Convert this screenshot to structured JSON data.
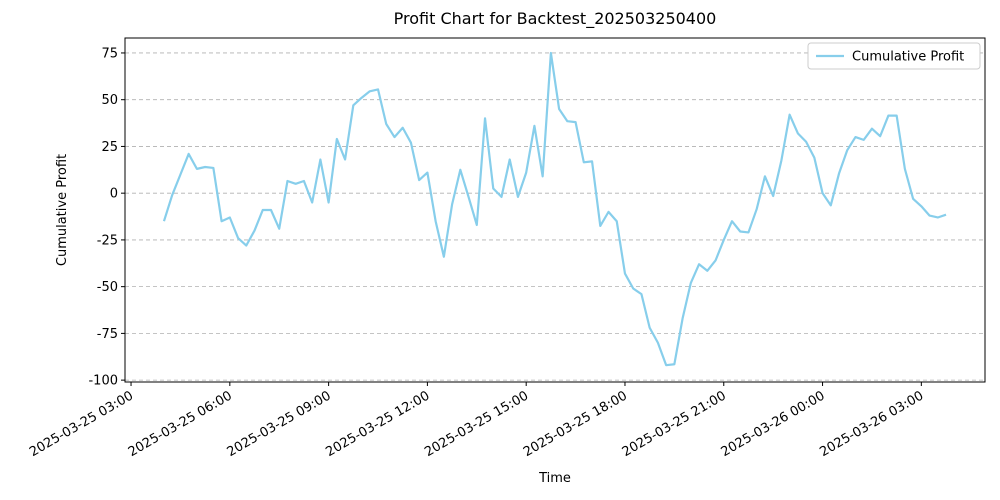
{
  "chart_data": {
    "type": "line",
    "title": "Profit Chart for Backtest_202503250400",
    "x_label": "Time",
    "y_label": "Cumulative Profit",
    "x": [
      "2025-03-25 04:00",
      "2025-03-25 04:15",
      "2025-03-25 04:30",
      "2025-03-25 04:45",
      "2025-03-25 05:00",
      "2025-03-25 05:15",
      "2025-03-25 05:30",
      "2025-03-25 05:45",
      "2025-03-25 06:00",
      "2025-03-25 06:15",
      "2025-03-25 06:30",
      "2025-03-25 06:45",
      "2025-03-25 07:00",
      "2025-03-25 07:15",
      "2025-03-25 07:30",
      "2025-03-25 07:45",
      "2025-03-25 08:00",
      "2025-03-25 08:15",
      "2025-03-25 08:30",
      "2025-03-25 08:45",
      "2025-03-25 09:00",
      "2025-03-25 09:15",
      "2025-03-25 09:30",
      "2025-03-25 09:45",
      "2025-03-25 10:00",
      "2025-03-25 10:15",
      "2025-03-25 10:30",
      "2025-03-25 10:45",
      "2025-03-25 11:00",
      "2025-03-25 11:15",
      "2025-03-25 11:30",
      "2025-03-25 11:45",
      "2025-03-25 12:00",
      "2025-03-25 12:15",
      "2025-03-25 12:30",
      "2025-03-25 12:45",
      "2025-03-25 13:00",
      "2025-03-25 13:15",
      "2025-03-25 13:30",
      "2025-03-25 13:45",
      "2025-03-25 14:00",
      "2025-03-25 14:15",
      "2025-03-25 14:30",
      "2025-03-25 14:45",
      "2025-03-25 15:00",
      "2025-03-25 15:15",
      "2025-03-25 15:30",
      "2025-03-25 15:45",
      "2025-03-25 16:00",
      "2025-03-25 16:15",
      "2025-03-25 16:30",
      "2025-03-25 16:45",
      "2025-03-25 17:00",
      "2025-03-25 17:15",
      "2025-03-25 17:30",
      "2025-03-25 17:45",
      "2025-03-25 18:00",
      "2025-03-25 18:15",
      "2025-03-25 18:30",
      "2025-03-25 18:45",
      "2025-03-25 19:00",
      "2025-03-25 19:15",
      "2025-03-25 19:30",
      "2025-03-25 19:45",
      "2025-03-25 20:00",
      "2025-03-25 20:15",
      "2025-03-25 20:30",
      "2025-03-25 20:45",
      "2025-03-25 21:00",
      "2025-03-25 21:15",
      "2025-03-25 21:30",
      "2025-03-25 21:45",
      "2025-03-25 22:00",
      "2025-03-25 22:15",
      "2025-03-25 22:30",
      "2025-03-25 22:45",
      "2025-03-25 23:00",
      "2025-03-25 23:15",
      "2025-03-25 23:30",
      "2025-03-25 23:45",
      "2025-03-26 00:00",
      "2025-03-26 00:15",
      "2025-03-26 00:30",
      "2025-03-26 00:45",
      "2025-03-26 01:00",
      "2025-03-26 01:15",
      "2025-03-26 01:30",
      "2025-03-26 01:45",
      "2025-03-26 02:00",
      "2025-03-26 02:15",
      "2025-03-26 02:30",
      "2025-03-26 02:45",
      "2025-03-26 03:00",
      "2025-03-26 03:15",
      "2025-03-26 03:30",
      "2025-03-26 03:45"
    ],
    "series": [
      {
        "name": "Cumulative Profit",
        "color": "#87ceeb",
        "values": [
          -15,
          -1,
          10,
          21,
          13,
          14,
          13.5,
          -15,
          -13,
          -24,
          -28,
          -20,
          -9,
          -9,
          -19,
          6.5,
          5,
          6.5,
          -5,
          18,
          -5,
          29,
          18,
          47,
          51,
          54.5,
          55.5,
          37,
          30,
          35,
          27,
          7,
          11,
          -15,
          -34,
          -6,
          12.5,
          -2,
          -17,
          40,
          2.5,
          -2,
          18,
          -2,
          11,
          36,
          9,
          75,
          45,
          38.5,
          38,
          16.5,
          17,
          -17.5,
          -10,
          -15,
          -43,
          -51,
          -54,
          -72,
          -80,
          -92,
          -91.5,
          -67,
          -48,
          -38,
          -41.5,
          -36,
          -25,
          -15,
          -20.5,
          -21,
          -8.5,
          9,
          -1.5,
          17.5,
          42,
          32,
          27.5,
          19,
          0,
          -6.5,
          10.5,
          23,
          30,
          28.5,
          34.5,
          30.5,
          41.5,
          41.5,
          13,
          -3,
          -7,
          -12,
          -13,
          -11.5
        ]
      }
    ],
    "xlim": [
      "2025-03-25 02:49",
      "2025-03-26 04:56"
    ],
    "xticks": [
      "2025-03-25 03:00",
      "2025-03-25 06:00",
      "2025-03-25 09:00",
      "2025-03-25 12:00",
      "2025-03-25 15:00",
      "2025-03-25 18:00",
      "2025-03-25 21:00",
      "2025-03-26 00:00",
      "2025-03-26 03:00"
    ],
    "ylim": [
      -101,
      83
    ],
    "yticks": [
      -100,
      -75,
      -50,
      -25,
      0,
      25,
      50,
      75
    ],
    "grid": true,
    "legend": "upper right"
  }
}
